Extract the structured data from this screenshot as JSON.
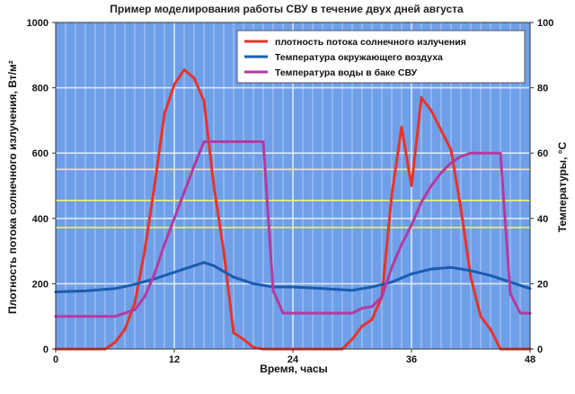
{
  "chart_data": {
    "type": "line",
    "title": "Пример моделирования работы СВУ в течение двух дней августа",
    "xlabel": "Время, часы",
    "ylabel_left": "Плотность потока солнечного излучения, Вт/м²",
    "ylabel_right": "Температуры, °С",
    "xlim": [
      0,
      48
    ],
    "ylim_left": [
      0,
      1000
    ],
    "ylim_right": [
      0,
      100
    ],
    "x_ticks": [
      0,
      12,
      24,
      36,
      48
    ],
    "y_left_ticks": [
      0,
      200,
      400,
      600,
      800,
      1000
    ],
    "y_right_ticks": [
      0,
      20,
      40,
      60,
      80,
      100
    ],
    "grid": true,
    "legend_position": "top-right",
    "reference_lines_left": [
      372,
      455,
      550
    ],
    "colors": {
      "background": "#6f9fe8",
      "grid_vertical": "#b9d1f5",
      "reference": "#f2f26a",
      "series1": "#e8332a",
      "series2": "#1a5cb0",
      "series3": "#b53aa0"
    },
    "series": [
      {
        "name": "плотность потока солнечного излучения",
        "axis": "left",
        "color": "#e8332a",
        "x": [
          0,
          5,
          6,
          7,
          8,
          9,
          10,
          11,
          12,
          13,
          14,
          15,
          16,
          17,
          18,
          19,
          20,
          21,
          22,
          24,
          29,
          30,
          31,
          32,
          33,
          34,
          35,
          36,
          37,
          38,
          39,
          40,
          41,
          42,
          43,
          44,
          45,
          46,
          48
        ],
        "y": [
          0,
          0,
          20,
          60,
          140,
          300,
          500,
          720,
          810,
          855,
          830,
          760,
          500,
          300,
          50,
          30,
          5,
          0,
          0,
          0,
          0,
          30,
          70,
          90,
          160,
          470,
          680,
          500,
          770,
          730,
          670,
          610,
          430,
          220,
          100,
          60,
          0,
          0,
          0
        ]
      },
      {
        "name": "Температура окружающего воздуха",
        "axis": "right",
        "color": "#1a5cb0",
        "x": [
          0,
          3,
          6,
          8,
          10,
          12,
          14,
          15,
          16,
          18,
          20,
          22,
          24,
          27,
          30,
          32,
          34,
          36,
          38,
          40,
          42,
          44,
          46,
          48
        ],
        "y": [
          17.5,
          17.8,
          18.5,
          19.8,
          21.5,
          23.5,
          25.5,
          26.5,
          25.5,
          22,
          20,
          19,
          19,
          18.5,
          18,
          19,
          20.5,
          23,
          24.5,
          25,
          24,
          22.5,
          20.5,
          18.5
        ]
      },
      {
        "name": "Температура воды в баке СВУ",
        "axis": "right",
        "color": "#b53aa0",
        "x": [
          0,
          6,
          7,
          8,
          9,
          10,
          11,
          12,
          13,
          14,
          15,
          16,
          18,
          20,
          21,
          22,
          23,
          24,
          26,
          28,
          30,
          31,
          32,
          33,
          34,
          35,
          36,
          37,
          38,
          39,
          40,
          41,
          42,
          44,
          45,
          46,
          47,
          48
        ],
        "y": [
          10,
          10,
          11,
          12,
          16,
          23,
          32,
          40,
          48,
          56,
          63.5,
          63.5,
          63.5,
          63.5,
          63.5,
          18,
          11,
          11,
          11,
          11,
          11,
          12.5,
          13,
          16,
          25,
          32,
          38,
          45,
          50,
          54,
          57,
          59,
          60,
          60,
          60,
          17,
          11,
          11
        ]
      }
    ]
  }
}
